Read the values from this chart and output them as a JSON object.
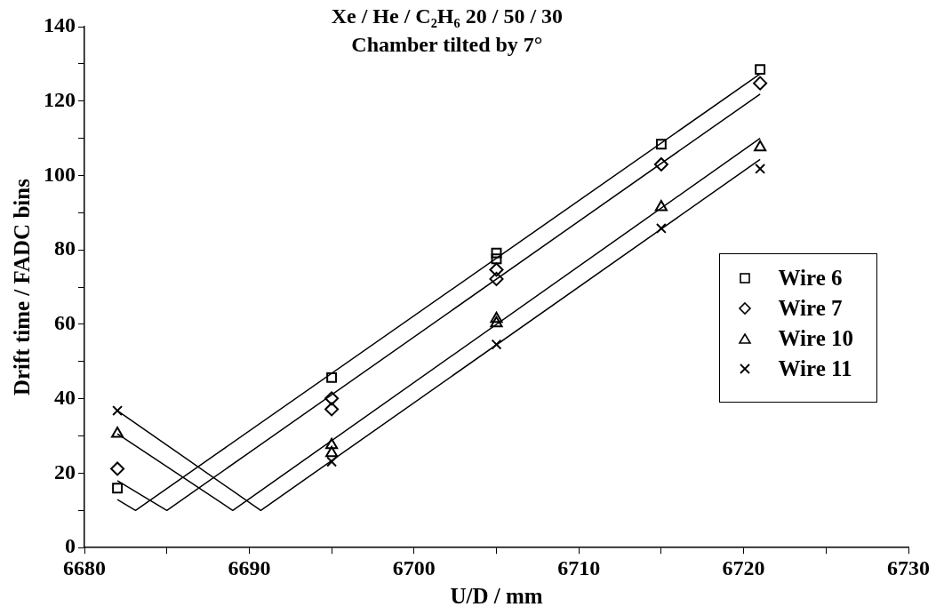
{
  "chart_data": {
    "type": "scatter",
    "title": "Xe / He / C₂H₆ 20 / 50 / 30",
    "subtitle": "Chamber tilted by 7°",
    "xlabel": "U/D / mm",
    "ylabel": "Drift time / FADC bins",
    "xlim": [
      6680,
      6730
    ],
    "xticks": [
      6680,
      {
        "value": 6685,
        "label": null
      },
      6690,
      {
        "value": 6695,
        "label": null
      },
      6700,
      {
        "value": 6705,
        "label": null
      },
      6710,
      {
        "value": 6715,
        "label": null
      },
      6720,
      {
        "value": 6725,
        "label": null
      },
      6730
    ],
    "ylim": [
      0,
      140
    ],
    "yticks": [
      0,
      {
        "value": 10,
        "label": null
      },
      20,
      {
        "value": 30,
        "label": null
      },
      40,
      {
        "value": 50,
        "label": null
      },
      60,
      {
        "value": 70,
        "label": null
      },
      80,
      {
        "value": 90,
        "label": null
      },
      100,
      {
        "value": 110,
        "label": null
      },
      120,
      {
        "value": 130,
        "label": null
      },
      140
    ],
    "grid": false,
    "legend": "right",
    "series": [
      {
        "name": "Wire 6",
        "type": "scatter",
        "marker": "square",
        "color": "#000000",
        "x": [
          6682,
          6695,
          6705,
          6705,
          6715,
          6721
        ],
        "values": [
          16,
          45.7,
          79.2,
          77.6,
          108.4,
          128.5
        ]
      },
      {
        "name": "Wire 7",
        "type": "scatter",
        "marker": "diamond",
        "color": "#000000",
        "x": [
          6682,
          6695,
          6695,
          6705,
          6705,
          6715,
          6721
        ],
        "values": [
          21.2,
          40.1,
          37.2,
          74.7,
          72.2,
          103,
          124.8
        ]
      },
      {
        "name": "Wire 10",
        "type": "scatter",
        "marker": "triangle",
        "color": "#000000",
        "x": [
          6682,
          6695,
          6695,
          6705,
          6705,
          6715,
          6721
        ],
        "values": [
          30.6,
          27.6,
          25.4,
          61.5,
          60.3,
          91.5,
          107.6
        ]
      },
      {
        "name": "Wire 11",
        "type": "scatter",
        "marker": "cross",
        "color": "#000000",
        "x": [
          6682,
          6695,
          6705,
          6715,
          6721
        ],
        "values": [
          36.8,
          23.1,
          54.6,
          85.8,
          101.8
        ]
      },
      {
        "type": "line",
        "marker": "none",
        "color": "#000000",
        "x": [
          6682,
          6683.1,
          6721
        ],
        "values": [
          12.9,
          10,
          127.3
        ]
      },
      {
        "type": "line",
        "marker": "none",
        "color": "#000000",
        "x": [
          6682,
          6685,
          6721
        ],
        "values": [
          18,
          10,
          121.9
        ]
      },
      {
        "type": "line",
        "marker": "none",
        "color": "#000000",
        "x": [
          6682,
          6689,
          6721
        ],
        "values": [
          30.6,
          10,
          110
        ]
      },
      {
        "type": "line",
        "marker": "none",
        "color": "#000000",
        "x": [
          6682,
          6690.7,
          6721
        ],
        "values": [
          36.8,
          10,
          104.3
        ]
      }
    ]
  }
}
